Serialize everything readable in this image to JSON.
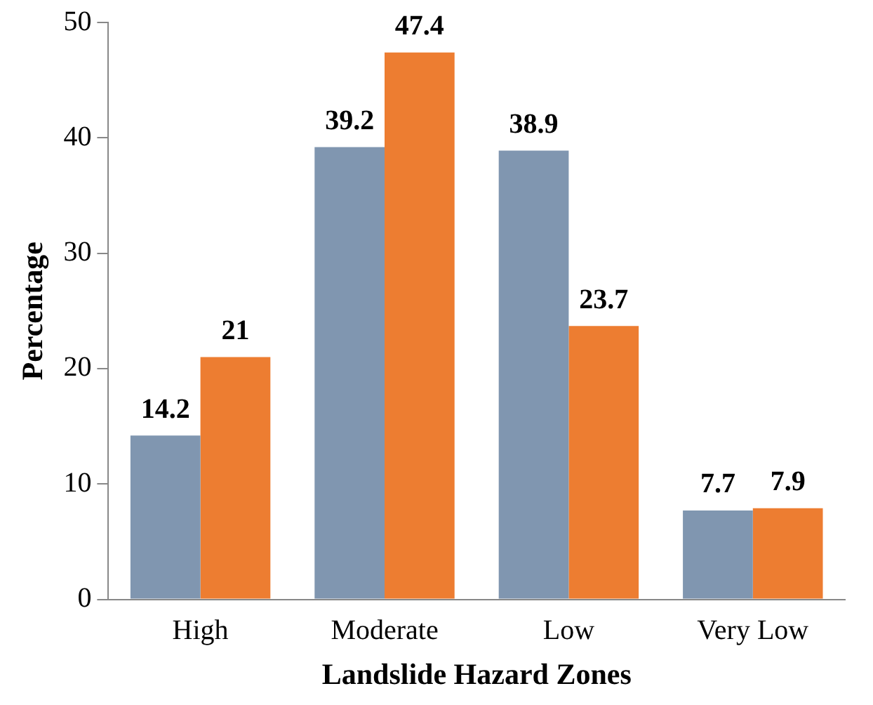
{
  "chart_data": {
    "type": "bar",
    "xlabel": "Landslide Hazard Zones",
    "ylabel": "Percentage",
    "categories": [
      "High",
      "Moderate",
      "Low",
      "Very Low"
    ],
    "series": [
      {
        "color": "#8096b0",
        "values": [
          14.2,
          39.2,
          38.9,
          7.7
        ]
      },
      {
        "color": "#ed7d31",
        "values": [
          21,
          47.4,
          23.7,
          7.9
        ]
      }
    ],
    "ylim": [
      0,
      50
    ],
    "yticks": [
      0,
      10,
      20,
      30,
      40,
      50
    ],
    "grid": false,
    "legend": false,
    "data_labels": true
  }
}
